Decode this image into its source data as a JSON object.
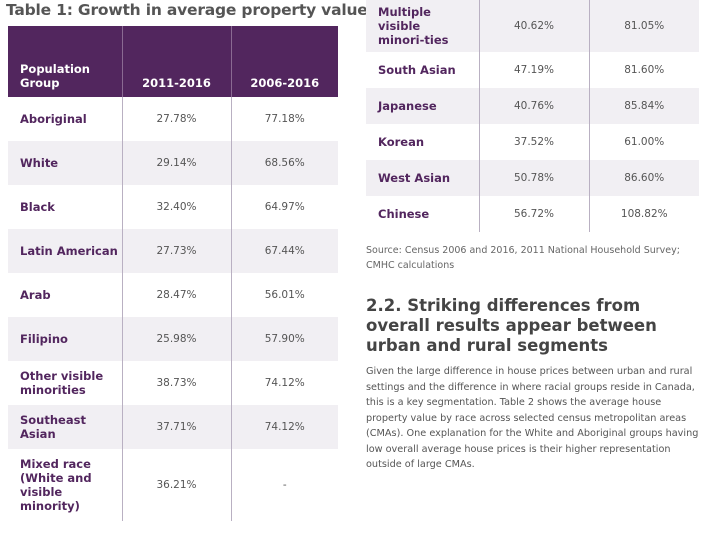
{
  "table1": {
    "title": "Table 1: Growth in average property value",
    "headers": [
      "Population Group",
      "2011-2016",
      "2006-2016"
    ],
    "rows": [
      {
        "group": "Aboriginal",
        "v2011_2016": "27.78%",
        "v2006_2016": "77.18%"
      },
      {
        "group": "White",
        "v2011_2016": "29.14%",
        "v2006_2016": "68.56%"
      },
      {
        "group": "Black",
        "v2011_2016": "32.40%",
        "v2006_2016": "64.97%"
      },
      {
        "group": "Latin American",
        "v2011_2016": "27.73%",
        "v2006_2016": "67.44%"
      },
      {
        "group": "Arab",
        "v2011_2016": "28.47%",
        "v2006_2016": "56.01%"
      },
      {
        "group": "Filipino",
        "v2011_2016": "25.98%",
        "v2006_2016": "57.90%"
      },
      {
        "group": "Other visible minorities",
        "v2011_2016": "38.73%",
        "v2006_2016": "74.12%"
      },
      {
        "group": "Southeast Asian",
        "v2011_2016": "37.71%",
        "v2006_2016": "74.12%"
      },
      {
        "group": "Mixed race (White and visible minority)",
        "v2011_2016": "36.21%",
        "v2006_2016": "-"
      }
    ]
  },
  "table1b": {
    "rows": [
      {
        "group": "Multiple visible minori-ties",
        "v2011_2016": "40.62%",
        "v2006_2016": "81.05%"
      },
      {
        "group": "South Asian",
        "v2011_2016": "47.19%",
        "v2006_2016": "81.60%"
      },
      {
        "group": "Japanese",
        "v2011_2016": "40.76%",
        "v2006_2016": "85.84%"
      },
      {
        "group": "Korean",
        "v2011_2016": "37.52%",
        "v2006_2016": "61.00%"
      },
      {
        "group": "West Asian",
        "v2011_2016": "50.78%",
        "v2006_2016": "86.60%"
      },
      {
        "group": "Chinese",
        "v2011_2016": "56.72%",
        "v2006_2016": "108.82%"
      }
    ]
  },
  "source": "Source: Census 2006 and 2016, 2011 National Household Survey; CMHC calculations",
  "section": {
    "heading": "2.2. Striking differences from overall results appear between urban and rural segments",
    "body": "Given the large difference in house prices between urban and rural settings and the difference in where racial groups reside in Canada, this is a key segmentation. Table 2 shows the average house property value by race across selected census metropolitan areas (CMAs). One explanation for the White and Aboriginal groups having low overall average house prices is their higher representation outside of large CMAs."
  }
}
